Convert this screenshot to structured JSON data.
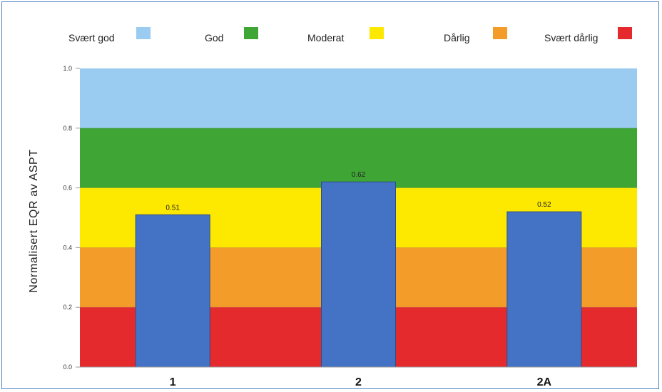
{
  "chart_data": {
    "type": "bar",
    "title": "",
    "xlabel": "",
    "ylabel": "Normalisert EQR av ASPT",
    "ylim": [
      0,
      1
    ],
    "yticks": [
      "0.0",
      "0.2",
      "0.4",
      "0.6",
      "0.8",
      "1.0"
    ],
    "categories": [
      "1",
      "2",
      "2A"
    ],
    "values": [
      0.51,
      0.62,
      0.52
    ],
    "data_labels": [
      "0.51",
      "0.62",
      "0.52"
    ],
    "bar_color": "#4472c4",
    "legend_position": "top",
    "grid": false,
    "bands": [
      {
        "name": "Svært god",
        "from": 0.8,
        "to": 1.0,
        "color": "#99ccf0"
      },
      {
        "name": "God",
        "from": 0.6,
        "to": 0.8,
        "color": "#3fa535"
      },
      {
        "name": "Moderat",
        "from": 0.4,
        "to": 0.6,
        "color": "#fde800"
      },
      {
        "name": "Dårlig",
        "from": 0.2,
        "to": 0.4,
        "color": "#f39c2a"
      },
      {
        "name": "Svært dårlig",
        "from": 0.0,
        "to": 0.2,
        "color": "#e52a2e"
      }
    ]
  }
}
